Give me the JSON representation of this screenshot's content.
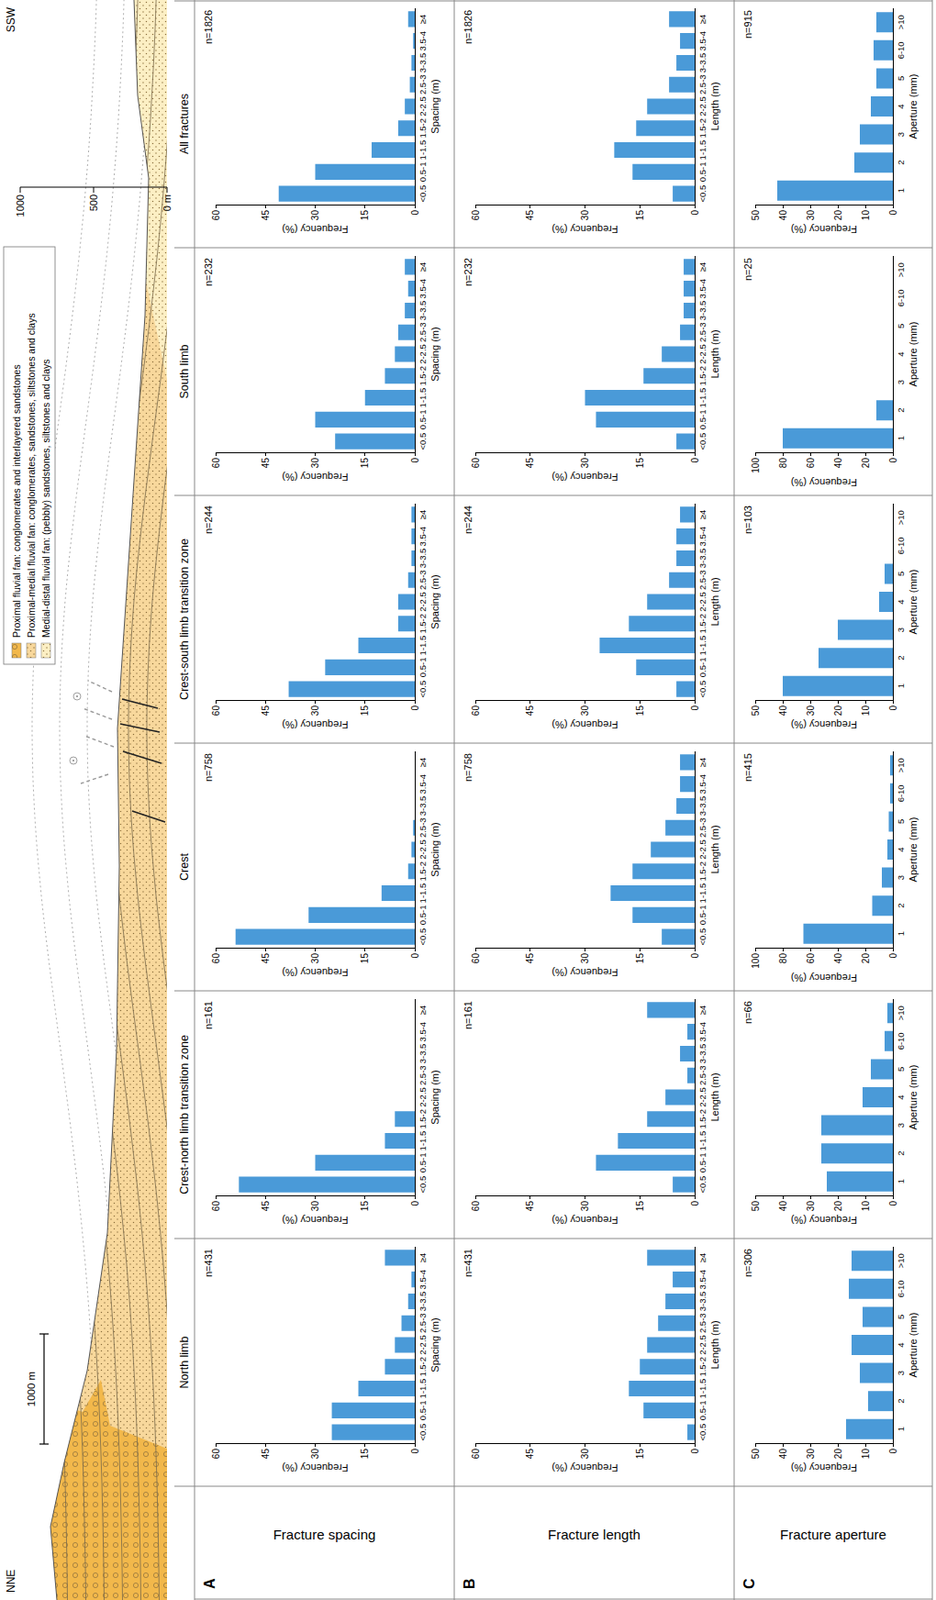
{
  "cross_section": {
    "left_label": "NNE",
    "right_label": "SSW",
    "scale_bar": "1000 m",
    "ylim": [
      0,
      1000
    ],
    "elevation_ticks": [
      {
        "value": 0,
        "label": "0 m"
      },
      500,
      1000
    ],
    "legend": [
      {
        "label": "Proximal fluvial fan: conglomerates and interlayered sandstones",
        "color": "#f2b84b"
      },
      {
        "label": "Proximal-medial fluvial fan: conglomerates, sandstones, siltstones and clays",
        "color": "#f8d89c"
      },
      {
        "label": "Medial-distal fluvial fan: (pebbly) sandstones, siltstones and clays",
        "color": "#fcefc4"
      }
    ]
  },
  "columns": [
    "North limb",
    "Crest-north limb transition zone",
    "Crest",
    "Crest-south limb transition zone",
    "South limb",
    "All fractures"
  ],
  "rows": [
    {
      "letter": "A",
      "label": "Fracture spacing"
    },
    {
      "letter": "B",
      "label": "Fracture length"
    },
    {
      "letter": "C",
      "label": "Fracture aperture"
    }
  ],
  "chart_data": [
    {
      "type": "bar",
      "annotation": "n=431",
      "x_label": "Spacing (m)",
      "y_label": "Frequency (%)",
      "categories": [
        "<0.5",
        "0.5-1",
        "1-1.5",
        "1.5-2",
        "2-2.5",
        "2.5-3",
        "3-3.5",
        "3.5-4",
        "≥4"
      ],
      "values": [
        25,
        25,
        17,
        9,
        6,
        4,
        2,
        1,
        9
      ],
      "color": "#4a9ad8",
      "ylim": [
        0,
        60
      ],
      "yticks": [
        0,
        15,
        30,
        45,
        60
      ],
      "grid": false
    },
    {
      "type": "bar",
      "annotation": "n=161",
      "x_label": "Spacing (m)",
      "y_label": "Frequency (%)",
      "categories": [
        "<0.5",
        "0.5-1",
        "1-1.5",
        "1.5-2",
        "2-2.5",
        "2.5-3",
        "3-3.5",
        "3.5-4",
        "≥4"
      ],
      "values": [
        53,
        30,
        9,
        6,
        0,
        0,
        0,
        0,
        0
      ],
      "color": "#4a9ad8",
      "ylim": [
        0,
        60
      ],
      "yticks": [
        0,
        15,
        30,
        45,
        60
      ],
      "grid": false
    },
    {
      "type": "bar",
      "annotation": "n=758",
      "x_label": "Spacing (m)",
      "y_label": "Frequency (%)",
      "categories": [
        "<0.5",
        "0.5-1",
        "1-1.5",
        "1.5-2",
        "2-2.5",
        "2.5-3",
        "3-3.5",
        "3.5-4",
        "≥4"
      ],
      "values": [
        54,
        32,
        10,
        2,
        1,
        0.5,
        0,
        0,
        0
      ],
      "color": "#4a9ad8",
      "ylim": [
        0,
        60
      ],
      "yticks": [
        0,
        15,
        30,
        45,
        60
      ],
      "grid": false
    },
    {
      "type": "bar",
      "annotation": "n=244",
      "x_label": "Spacing (m)",
      "y_label": "Frequency (%)",
      "categories": [
        "<0.5",
        "0.5-1",
        "1-1.5",
        "1.5-2",
        "2-2.5",
        "2.5-3",
        "3-3.5",
        "3.5-4",
        "≥4"
      ],
      "values": [
        38,
        27,
        17,
        5,
        5,
        2,
        1,
        1,
        1
      ],
      "color": "#4a9ad8",
      "ylim": [
        0,
        60
      ],
      "yticks": [
        0,
        15,
        30,
        45,
        60
      ],
      "grid": false
    },
    {
      "type": "bar",
      "annotation": "n=232",
      "x_label": "Spacing (m)",
      "y_label": "Frequency (%)",
      "categories": [
        "<0.5",
        "0.5-1",
        "1-1.5",
        "1.5-2",
        "2-2.5",
        "2.5-3",
        "3-3.5",
        "3.5-4",
        "≥4"
      ],
      "values": [
        24,
        30,
        15,
        9,
        6,
        5,
        3,
        2,
        3
      ],
      "color": "#4a9ad8",
      "ylim": [
        0,
        60
      ],
      "yticks": [
        0,
        15,
        30,
        45,
        60
      ],
      "grid": false
    },
    {
      "type": "bar",
      "annotation": "n=1826",
      "x_label": "Spacing (m)",
      "y_label": "Frequency (%)",
      "categories": [
        "<0.5",
        "0.5-1",
        "1-1.5",
        "1.5-2",
        "2-2.5",
        "2.5-3",
        "3-3.5",
        "3.5-4",
        "≥4"
      ],
      "values": [
        41,
        30,
        13,
        5,
        3,
        1.5,
        1,
        0.5,
        2
      ],
      "color": "#4a9ad8",
      "ylim": [
        0,
        60
      ],
      "yticks": [
        0,
        15,
        30,
        45,
        60
      ],
      "grid": false
    },
    {
      "type": "bar",
      "annotation": "n=431",
      "x_label": "Length (m)",
      "y_label": "Frequency (%)",
      "categories": [
        "<0.5",
        "0.5-1",
        "1-1.5",
        "1.5-2",
        "2-2.5",
        "2.5-3",
        "3-3.5",
        "3.5-4",
        "≥4"
      ],
      "values": [
        2,
        14,
        18,
        15,
        13,
        10,
        8,
        6,
        13
      ],
      "color": "#4a9ad8",
      "ylim": [
        0,
        60
      ],
      "yticks": [
        0,
        15,
        30,
        45,
        60
      ],
      "grid": false
    },
    {
      "type": "bar",
      "annotation": "n=161",
      "x_label": "Length (m)",
      "y_label": "Frequency (%)",
      "categories": [
        "<0.5",
        "0.5-1",
        "1-1.5",
        "1.5-2",
        "2-2.5",
        "2.5-3",
        "3-3.5",
        "3.5-4",
        "≥4"
      ],
      "values": [
        6,
        27,
        21,
        13,
        8,
        2,
        4,
        2,
        13
      ],
      "color": "#4a9ad8",
      "ylim": [
        0,
        60
      ],
      "yticks": [
        0,
        15,
        30,
        45,
        60
      ],
      "grid": false
    },
    {
      "type": "bar",
      "annotation": "n=758",
      "x_label": "Length (m)",
      "y_label": "Frequency (%)",
      "categories": [
        "<0.5",
        "0.5-1",
        "1-1.5",
        "1.5-2",
        "2-2.5",
        "2.5-3",
        "3-3.5",
        "3.5-4",
        "≥4"
      ],
      "values": [
        9,
        17,
        23,
        17,
        12,
        8,
        5,
        4,
        4
      ],
      "color": "#4a9ad8",
      "ylim": [
        0,
        60
      ],
      "yticks": [
        0,
        15,
        30,
        45,
        60
      ],
      "grid": false
    },
    {
      "type": "bar",
      "annotation": "n=244",
      "x_label": "Length (m)",
      "y_label": "Frequency (%)",
      "categories": [
        "<0.5",
        "0.5-1",
        "1-1.5",
        "1.5-2",
        "2-2.5",
        "2.5-3",
        "3-3.5",
        "3.5-4",
        "≥4"
      ],
      "values": [
        5,
        16,
        26,
        18,
        13,
        7,
        5,
        5,
        4
      ],
      "color": "#4a9ad8",
      "ylim": [
        0,
        60
      ],
      "yticks": [
        0,
        15,
        30,
        45,
        60
      ],
      "grid": false
    },
    {
      "type": "bar",
      "annotation": "n=232",
      "x_label": "Length (m)",
      "y_label": "Frequency (%)",
      "categories": [
        "<0.5",
        "0.5-1",
        "1-1.5",
        "1.5-2",
        "2-2.5",
        "2.5-3",
        "3-3.5",
        "3.5-4",
        "≥4"
      ],
      "values": [
        5,
        27,
        30,
        14,
        9,
        4,
        3,
        3,
        3
      ],
      "color": "#4a9ad8",
      "ylim": [
        0,
        60
      ],
      "yticks": [
        0,
        15,
        30,
        45,
        60
      ],
      "grid": false
    },
    {
      "type": "bar",
      "annotation": "n=1826",
      "x_label": "Length (m)",
      "y_label": "Frequency (%)",
      "categories": [
        "<0.5",
        "0.5-1",
        "1-1.5",
        "1.5-2",
        "2-2.5",
        "2.5-3",
        "3-3.5",
        "3.5-4",
        "≥4"
      ],
      "values": [
        6,
        17,
        22,
        16,
        13,
        7,
        5,
        4,
        7
      ],
      "color": "#4a9ad8",
      "ylim": [
        0,
        60
      ],
      "yticks": [
        0,
        15,
        30,
        45,
        60
      ],
      "grid": false
    },
    {
      "type": "bar",
      "annotation": "n=306",
      "x_label": "Aperture (mm)",
      "y_label": "Frequency (%)",
      "categories": [
        "1",
        "2",
        "3",
        "4",
        "5",
        "6-10",
        ">10"
      ],
      "values": [
        17,
        9,
        12,
        15,
        11,
        16,
        15
      ],
      "color": "#4a9ad8",
      "ylim": [
        0,
        50
      ],
      "yticks": [
        0,
        10,
        20,
        30,
        40,
        50
      ],
      "grid": false
    },
    {
      "type": "bar",
      "annotation": "n=66",
      "x_label": "Aperture (mm)",
      "y_label": "Frequency (%)",
      "categories": [
        "1",
        "2",
        "3",
        "4",
        "5",
        "6-10",
        ">10"
      ],
      "values": [
        24,
        26,
        26,
        11,
        8,
        3,
        2
      ],
      "color": "#4a9ad8",
      "ylim": [
        0,
        50
      ],
      "yticks": [
        0,
        10,
        20,
        30,
        40,
        50
      ],
      "grid": false
    },
    {
      "type": "bar",
      "annotation": "n=415",
      "x_label": "Aperture (mm)",
      "y_label": "Frequency (%)",
      "categories": [
        "1",
        "2",
        "3",
        "4",
        "5",
        "6-10",
        ">10"
      ],
      "values": [
        65,
        15,
        8,
        4,
        3,
        2,
        2
      ],
      "color": "#4a9ad8",
      "ylim": [
        0,
        100
      ],
      "yticks": [
        0,
        20,
        40,
        60,
        80,
        100
      ],
      "grid": false
    },
    {
      "type": "bar",
      "annotation": "n=103",
      "x_label": "Aperture (mm)",
      "y_label": "Frequency (%)",
      "categories": [
        "1",
        "2",
        "3",
        "4",
        "5",
        "6-10",
        ">10"
      ],
      "values": [
        40,
        27,
        20,
        5,
        3,
        0,
        0
      ],
      "color": "#4a9ad8",
      "ylim": [
        0,
        50
      ],
      "yticks": [
        0,
        10,
        20,
        30,
        40,
        50
      ],
      "grid": false
    },
    {
      "type": "bar",
      "annotation": "n=25",
      "x_label": "Aperture (mm)",
      "y_label": "Frequency (%)",
      "categories": [
        "1",
        "2",
        "3",
        "4",
        "5",
        "6-10",
        ">10"
      ],
      "values": [
        80,
        12,
        0,
        0,
        0,
        0,
        0
      ],
      "color": "#4a9ad8",
      "ylim": [
        0,
        100
      ],
      "yticks": [
        0,
        20,
        40,
        60,
        80,
        100
      ],
      "grid": false
    },
    {
      "type": "bar",
      "annotation": "n=915",
      "x_label": "Aperture (mm)",
      "y_label": "Frequency (%)",
      "categories": [
        "1",
        "2",
        "3",
        "4",
        "5",
        "6-10",
        ">10"
      ],
      "values": [
        42,
        14,
        12,
        8,
        6,
        7,
        6
      ],
      "color": "#4a9ad8",
      "ylim": [
        0,
        50
      ],
      "yticks": [
        0,
        10,
        20,
        30,
        40,
        50
      ],
      "grid": false
    }
  ]
}
